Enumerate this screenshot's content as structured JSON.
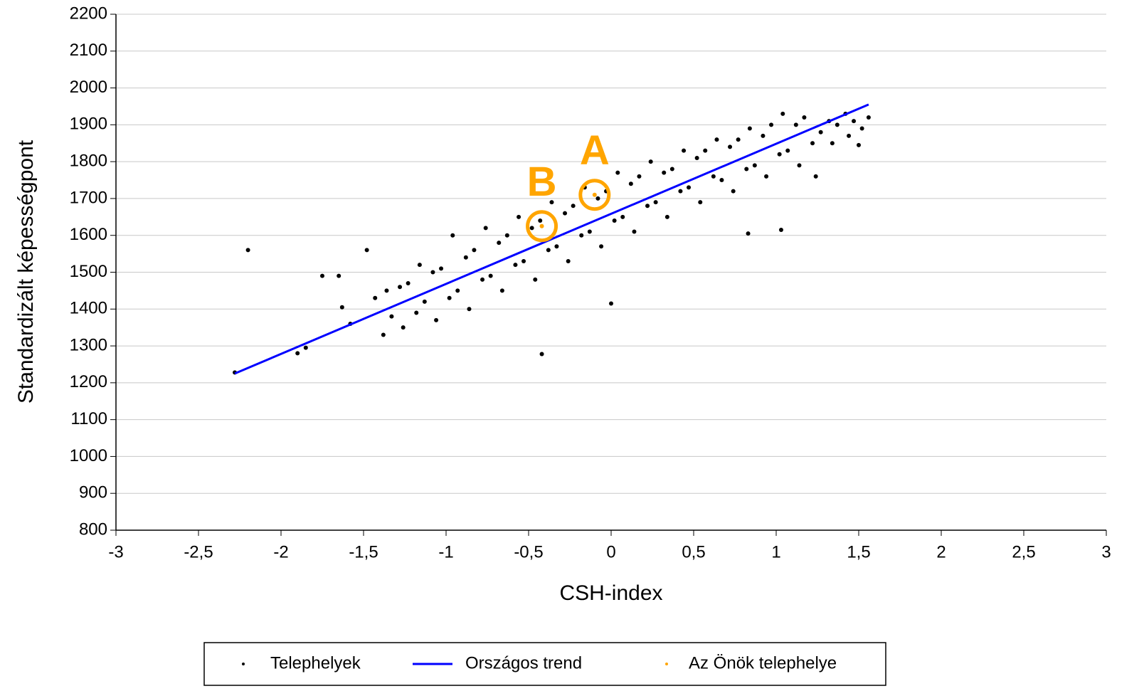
{
  "chart_data": {
    "type": "scatter",
    "xlabel": "CSH-index",
    "ylabel": "Standardizált képességpont",
    "xlim": [
      -3,
      3
    ],
    "xticks": [
      -3,
      {
        "value": -2.5,
        "label": "-2,5"
      },
      -2,
      {
        "value": -1.5,
        "label": "-1,5"
      },
      -1,
      {
        "value": -0.5,
        "label": "-0,5"
      },
      0,
      {
        "value": 0.5,
        "label": "0,5"
      },
      1,
      {
        "value": 1.5,
        "label": "1,5"
      },
      2,
      {
        "value": 2.5,
        "label": "2,5"
      },
      3
    ],
    "ylim": [
      800,
      2200
    ],
    "yticks": [
      800,
      900,
      1000,
      1100,
      1200,
      1300,
      1400,
      1500,
      1600,
      1700,
      1800,
      1900,
      2000,
      2100,
      2200
    ],
    "grid": true,
    "legend": "bottom",
    "series": [
      {
        "name": "Telephelyek",
        "color": "#000000",
        "kind": "points",
        "x": [
          -1.43,
          -1.38,
          -1.36,
          -1.33,
          -1.28,
          -1.26,
          -1.23,
          -1.18,
          -1.16,
          -1.13,
          -1.08,
          -1.06,
          -1.03,
          -0.98,
          -0.96,
          -0.93,
          -0.88,
          -0.86,
          -0.83,
          -0.78,
          -0.76,
          -0.73,
          -0.68,
          -0.66,
          -0.63,
          -0.58,
          -0.56,
          -0.53,
          -0.48,
          -0.46,
          -0.43,
          -0.38,
          -0.36,
          -0.33,
          -0.28,
          -0.26,
          -0.23,
          -0.18,
          -0.16,
          -0.13,
          -0.08,
          -0.06,
          -0.03,
          0.02,
          0.04,
          0.07,
          0.12,
          0.14,
          0.17,
          0.22,
          0.24,
          0.27,
          0.32,
          0.34,
          0.37,
          0.42,
          0.44,
          0.47,
          0.52,
          0.54,
          0.57,
          0.62,
          0.64,
          0.67,
          0.72,
          0.74,
          0.77,
          0.82,
          0.84,
          0.87,
          0.92,
          0.94,
          0.97,
          1.02,
          1.04,
          1.07,
          1.12,
          1.14,
          1.17,
          1.22,
          1.24,
          1.27,
          1.32,
          1.34,
          1.37,
          1.42,
          1.44,
          1.47,
          1.52,
          -2.28,
          -2.2,
          -1.9,
          -1.85,
          -1.75,
          -1.65,
          -1.63,
          -1.58,
          -1.48,
          -0.42,
          0,
          0.83,
          1.03,
          1.56,
          1.5
        ],
        "values": [
          1430,
          1330,
          1450,
          1380,
          1460,
          1350,
          1470,
          1390,
          1520,
          1420,
          1500,
          1370,
          1510,
          1430,
          1600,
          1450,
          1540,
          1400,
          1560,
          1480,
          1620,
          1490,
          1580,
          1450,
          1600,
          1520,
          1650,
          1530,
          1620,
          1480,
          1640,
          1560,
          1690,
          1570,
          1660,
          1530,
          1680,
          1600,
          1730,
          1610,
          1700,
          1570,
          1720,
          1640,
          1770,
          1650,
          1740,
          1610,
          1760,
          1680,
          1800,
          1690,
          1770,
          1650,
          1780,
          1720,
          1830,
          1730,
          1810,
          1690,
          1830,
          1760,
          1860,
          1750,
          1840,
          1720,
          1860,
          1780,
          1890,
          1790,
          1870,
          1760,
          1900,
          1820,
          1930,
          1830,
          1900,
          1790,
          1920,
          1850,
          1760,
          1880,
          1910,
          1850,
          1900,
          1930,
          1870,
          1910,
          1890,
          1228,
          1560,
          1280,
          1295,
          1490,
          1490,
          1405,
          1360,
          1560,
          1278,
          1415,
          1605,
          1615,
          1920,
          1845
        ]
      },
      {
        "name": "Országos trend",
        "color": "#0000ff",
        "kind": "line",
        "x": [
          -2.28,
          1.56
        ],
        "values": [
          1225,
          1955
        ]
      },
      {
        "name": "Az Önök telephelye",
        "color": "#ffa500",
        "kind": "points",
        "x": [
          -0.1,
          -0.42
        ],
        "values": [
          1710,
          1625
        ]
      }
    ],
    "annotations": [
      {
        "text": "A",
        "x": -0.1,
        "y": 1710,
        "color": "#ffa500"
      },
      {
        "text": "B",
        "x": -0.42,
        "y": 1625,
        "color": "#ffa500"
      }
    ]
  }
}
